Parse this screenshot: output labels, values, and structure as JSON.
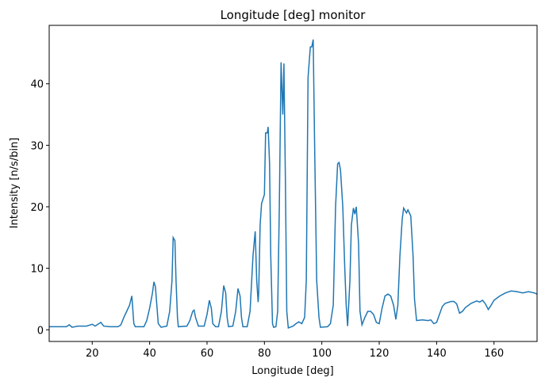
{
  "chart_data": {
    "type": "line",
    "title": "Longitude [deg] monitor",
    "x_label": "Longitude [deg]",
    "y_label": "Intensity [n/s/bin]",
    "x": [
      5,
      8,
      11,
      12,
      13,
      15,
      18,
      20,
      21,
      23,
      24,
      26,
      29,
      30,
      31,
      32,
      33,
      33.8,
      34.5,
      35,
      38,
      39,
      40,
      41,
      41.5,
      42,
      42.5,
      43,
      44,
      46,
      47,
      47.8,
      48.2,
      48.8,
      49.2,
      49.7,
      50,
      53,
      54,
      55,
      55.5,
      56,
      57,
      59,
      60,
      60.8,
      61.5,
      62,
      63,
      64,
      65,
      65.8,
      66.5,
      67,
      67.5,
      69,
      70,
      70.8,
      71.5,
      72,
      72.5,
      74,
      75,
      76,
      76.8,
      77.3,
      77.8,
      78,
      78.5,
      79,
      80,
      80.4,
      81,
      81.3,
      81.8,
      82.2,
      82.8,
      83.2,
      84,
      84.6,
      85.2,
      85.8,
      86.4,
      86.8,
      87.3,
      87.8,
      88.3,
      90,
      91,
      92,
      93,
      94,
      94.6,
      95.2,
      96,
      96.5,
      97,
      97.5,
      98.2,
      99,
      99.5,
      102,
      103,
      104,
      104.8,
      105.5,
      106,
      106.5,
      107.3,
      108,
      108.5,
      109,
      109.8,
      110.3,
      111,
      111.5,
      112,
      112.8,
      113.3,
      114,
      115,
      116,
      117,
      118,
      119,
      120,
      121,
      122,
      123,
      124,
      125,
      125.8,
      126.5,
      127.2,
      128,
      128.5,
      129.5,
      130,
      131,
      131.8,
      132.3,
      133,
      135,
      137,
      138,
      139,
      140,
      141,
      142,
      143,
      145,
      146,
      147,
      148,
      149,
      150,
      152,
      154,
      155,
      156,
      157,
      158,
      159,
      160,
      162,
      164,
      166,
      168,
      170,
      172,
      174,
      175
    ],
    "series": [
      {
        "name": "Longitude",
        "color": "#1f77b4",
        "values": [
          0.5,
          0.5,
          0.5,
          0.8,
          0.4,
          0.6,
          0.6,
          0.9,
          0.6,
          1.2,
          0.6,
          0.5,
          0.5,
          0.8,
          2,
          3,
          4,
          5.5,
          1,
          0.5,
          0.5,
          1.5,
          3.5,
          6,
          7.8,
          7,
          4,
          1,
          0.4,
          0.6,
          3,
          8,
          15,
          14.5,
          8,
          2,
          0.5,
          0.6,
          1.5,
          3,
          3.2,
          2,
          0.6,
          0.6,
          2.5,
          4.8,
          3.5,
          1,
          0.5,
          0.5,
          3,
          7.2,
          6,
          2,
          0.5,
          0.6,
          3,
          6.7,
          5.5,
          2,
          0.5,
          0.5,
          3,
          12,
          16,
          8,
          4.5,
          6,
          17,
          20.5,
          22,
          32,
          32,
          33,
          27,
          12,
          1,
          0.4,
          0.5,
          3,
          20,
          43.5,
          35,
          43.3,
          25,
          3,
          0.3,
          0.6,
          1,
          1.3,
          1,
          2,
          8,
          41,
          46,
          46,
          47.2,
          30,
          8,
          2,
          0.4,
          0.5,
          1,
          4,
          20,
          27,
          27.2,
          26,
          20,
          10,
          4,
          0.6,
          8,
          17,
          19.8,
          18.8,
          20,
          14,
          3,
          0.8,
          2,
          3,
          3,
          2.5,
          1.2,
          1,
          3.5,
          5.5,
          5.8,
          5.5,
          4,
          1.7,
          4,
          12,
          18,
          19.8,
          19,
          19.5,
          18.5,
          12,
          5,
          1.5,
          1.6,
          1.5,
          1.6,
          1,
          1.2,
          2.5,
          3.8,
          4.3,
          4.6,
          4.6,
          4.2,
          2.7,
          3,
          3.6,
          4.3,
          4.7,
          4.5,
          4.8,
          4.2,
          3.3,
          4,
          4.8,
          5.5,
          6,
          6.3,
          6.2,
          6,
          6.2,
          6,
          5.8
        ]
      }
    ],
    "xlim": [
      5,
      175
    ],
    "ylim": [
      -1.9,
      49.5
    ],
    "xticks": [
      20,
      40,
      60,
      80,
      100,
      120,
      140,
      160
    ],
    "yticks": [
      0,
      10,
      20,
      30,
      40
    ]
  }
}
